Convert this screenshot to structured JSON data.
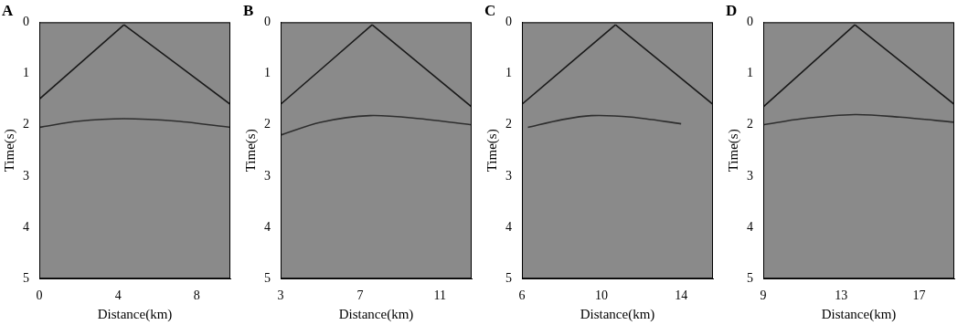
{
  "chart_data": [
    {
      "type": "line",
      "title": "A",
      "xlabel": "Distance(km)",
      "ylabel": "Time(s)",
      "xlim": [
        0,
        9.7
      ],
      "xticks": [
        0,
        4,
        8
      ],
      "ylim": [
        5,
        0
      ],
      "yticks": [
        0,
        1,
        2,
        3,
        4,
        5
      ],
      "grid": false,
      "series": [
        {
          "color": "#1a1a1a",
          "x": [
            0,
            4.3
          ],
          "values": [
            1.5,
            0.05
          ]
        },
        {
          "color": "#1a1a1a",
          "x": [
            4.3,
            9.7
          ],
          "values": [
            0.05,
            1.6
          ]
        },
        {
          "color": "#2e2e2e",
          "x": [
            0,
            2,
            4.3,
            7,
            9.7
          ],
          "values": [
            2.05,
            1.93,
            1.88,
            1.93,
            2.05
          ]
        }
      ]
    },
    {
      "type": "line",
      "title": "B",
      "xlabel": "Distance(km)",
      "ylabel": "Time(s)",
      "xlim": [
        3,
        12.6
      ],
      "xticks": [
        3,
        7,
        11
      ],
      "ylim": [
        5,
        0
      ],
      "yticks": [
        0,
        1,
        2,
        3,
        4,
        5
      ],
      "grid": false,
      "series": [
        {
          "color": "#1a1a1a",
          "x": [
            3,
            7.6
          ],
          "values": [
            1.6,
            0.05
          ]
        },
        {
          "color": "#1a1a1a",
          "x": [
            7.6,
            12.6
          ],
          "values": [
            0.05,
            1.65
          ]
        },
        {
          "color": "#2e2e2e",
          "x": [
            3,
            5,
            7.5,
            10,
            12.6
          ],
          "values": [
            2.2,
            1.95,
            1.82,
            1.88,
            2.0
          ]
        }
      ]
    },
    {
      "type": "line",
      "title": "C",
      "xlabel": "Distance(km)",
      "ylabel": "Time(s)",
      "xlim": [
        6,
        15.6
      ],
      "xticks": [
        6,
        10,
        14
      ],
      "ylim": [
        5,
        0
      ],
      "yticks": [
        0,
        1,
        2,
        3,
        4,
        5
      ],
      "grid": false,
      "series": [
        {
          "color": "#1a1a1a",
          "x": [
            6,
            10.7
          ],
          "values": [
            1.6,
            0.05
          ]
        },
        {
          "color": "#1a1a1a",
          "x": [
            10.7,
            15.6
          ],
          "values": [
            0.05,
            1.6
          ]
        },
        {
          "color": "#2e2e2e",
          "x": [
            6.3,
            8,
            9.5,
            11.5,
            14
          ],
          "values": [
            2.05,
            1.9,
            1.82,
            1.85,
            1.98
          ]
        }
      ]
    },
    {
      "type": "line",
      "title": "D",
      "xlabel": "Distance(km)",
      "ylabel": "Time(s)",
      "xlim": [
        9,
        18.8
      ],
      "xticks": [
        9,
        13,
        17
      ],
      "ylim": [
        5,
        0
      ],
      "yticks": [
        0,
        1,
        2,
        3,
        4,
        5
      ],
      "grid": false,
      "series": [
        {
          "color": "#1a1a1a",
          "x": [
            9,
            13.7
          ],
          "values": [
            1.65,
            0.05
          ]
        },
        {
          "color": "#1a1a1a",
          "x": [
            13.7,
            18.8
          ],
          "values": [
            0.05,
            1.6
          ]
        },
        {
          "color": "#2e2e2e",
          "x": [
            9,
            11,
            13.7,
            16,
            18.8
          ],
          "values": [
            2.0,
            1.88,
            1.8,
            1.85,
            1.95
          ]
        }
      ]
    }
  ]
}
